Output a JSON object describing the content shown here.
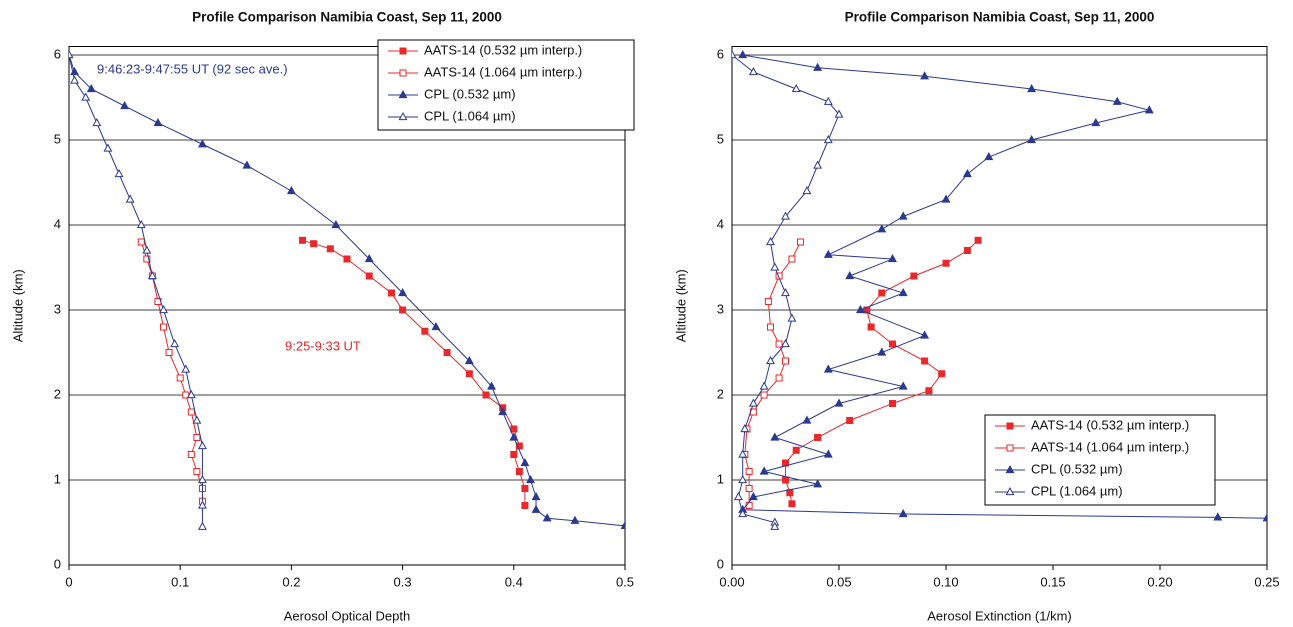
{
  "chart_data": [
    {
      "type": "line",
      "title": "Profile Comparison Namibia Coast, Sep 11, 2000",
      "x_label": "Aerosol Optical Depth",
      "y_label": "Altitude (km)",
      "xlim": [
        0,
        0.5
      ],
      "xticks": [
        0,
        0.1,
        0.2,
        0.3,
        0.4,
        0.5
      ],
      "ylim": [
        0,
        6.1
      ],
      "yticks": [
        0,
        1,
        2,
        3,
        4,
        5,
        6
      ],
      "grid": true,
      "legend": "upper right",
      "annotations": [
        {
          "text": "9:46:23-9:47:55 UT (92 sec ave.)",
          "color": "#2b3990"
        },
        {
          "text": "9:25-9:33 UT",
          "color": "#e8282a"
        }
      ],
      "series": [
        {
          "name": "AATS-14 (0.532 µm interp.)",
          "color": "#e8282a",
          "marker": "square",
          "filled": true,
          "x": [
            0.21,
            0.22,
            0.235,
            0.25,
            0.27,
            0.29,
            0.3,
            0.32,
            0.34,
            0.36,
            0.375,
            0.39,
            0.4,
            0.405,
            0.4,
            0.405,
            0.41,
            0.41
          ],
          "y": [
            3.82,
            3.78,
            3.72,
            3.6,
            3.4,
            3.2,
            3.0,
            2.75,
            2.5,
            2.25,
            2.0,
            1.85,
            1.6,
            1.4,
            1.3,
            1.1,
            0.9,
            0.7
          ]
        },
        {
          "name": "AATS-14 (1.064 µm interp.)",
          "color": "#e8282a",
          "marker": "square",
          "filled": false,
          "x": [
            0.065,
            0.07,
            0.075,
            0.08,
            0.085,
            0.09,
            0.1,
            0.105,
            0.11,
            0.115,
            0.11,
            0.115,
            0.12,
            0.12
          ],
          "y": [
            3.8,
            3.6,
            3.4,
            3.1,
            2.8,
            2.5,
            2.2,
            2.0,
            1.8,
            1.5,
            1.3,
            1.1,
            0.9,
            0.75
          ]
        },
        {
          "name": "CPL (0.532 µm)",
          "color": "#2b3990",
          "marker": "triangle",
          "filled": true,
          "x": [
            0,
            0.005,
            0.02,
            0.05,
            0.08,
            0.12,
            0.16,
            0.2,
            0.24,
            0.27,
            0.3,
            0.33,
            0.36,
            0.38,
            0.39,
            0.4,
            0.41,
            0.415,
            0.42,
            0.42,
            0.43,
            0.455,
            0.5
          ],
          "y": [
            6.0,
            5.8,
            5.6,
            5.4,
            5.2,
            4.95,
            4.7,
            4.4,
            4.0,
            3.6,
            3.2,
            2.8,
            2.4,
            2.1,
            1.8,
            1.5,
            1.2,
            1.0,
            0.8,
            0.65,
            0.55,
            0.52,
            0.46
          ]
        },
        {
          "name": "CPL (1.064 µm)",
          "color": "#2b3990",
          "marker": "triangle",
          "filled": false,
          "x": [
            0,
            0.005,
            0.015,
            0.025,
            0.035,
            0.045,
            0.055,
            0.065,
            0.07,
            0.075,
            0.085,
            0.095,
            0.105,
            0.11,
            0.115,
            0.12,
            0.12,
            0.12,
            0.12
          ],
          "y": [
            6.0,
            5.7,
            5.5,
            5.2,
            4.9,
            4.6,
            4.3,
            4.0,
            3.7,
            3.4,
            3.0,
            2.6,
            2.3,
            2.0,
            1.7,
            1.4,
            1.0,
            0.7,
            0.45
          ]
        }
      ]
    },
    {
      "type": "line",
      "title": "Profile Comparison Namibia Coast, Sep 11, 2000",
      "x_label": "Aerosol Extinction (1/km)",
      "y_label": "Altitude (km)",
      "xlim": [
        0,
        0.25
      ],
      "xticks": [
        {
          "value": 0,
          "label": "0.00"
        },
        {
          "value": 0.05,
          "label": "0.05"
        },
        {
          "value": 0.1,
          "label": "0.10"
        },
        {
          "value": 0.15,
          "label": "0.15"
        },
        {
          "value": 0.2,
          "label": "0.20"
        },
        {
          "value": 0.25,
          "label": "0.25"
        }
      ],
      "ylim": [
        0,
        6.1
      ],
      "yticks": [
        0,
        1,
        2,
        3,
        4,
        5,
        6
      ],
      "grid": true,
      "legend": "lower right",
      "series": [
        {
          "name": "AATS-14 (0.532 µm interp.)",
          "color": "#e8282a",
          "marker": "square",
          "filled": true,
          "x": [
            0.115,
            0.11,
            0.1,
            0.085,
            0.07,
            0.063,
            0.065,
            0.075,
            0.09,
            0.098,
            0.092,
            0.075,
            0.055,
            0.04,
            0.03,
            0.025,
            0.025,
            0.027,
            0.028
          ],
          "y": [
            3.82,
            3.7,
            3.55,
            3.4,
            3.2,
            3.0,
            2.8,
            2.6,
            2.4,
            2.25,
            2.05,
            1.9,
            1.7,
            1.5,
            1.35,
            1.2,
            1.0,
            0.85,
            0.72
          ]
        },
        {
          "name": "AATS-14 (1.064 µm interp.)",
          "color": "#e8282a",
          "marker": "square",
          "filled": false,
          "x": [
            0.032,
            0.028,
            0.022,
            0.017,
            0.018,
            0.022,
            0.025,
            0.022,
            0.015,
            0.01,
            0.007,
            0.006,
            0.008,
            0.008,
            0.008
          ],
          "y": [
            3.8,
            3.6,
            3.4,
            3.1,
            2.8,
            2.6,
            2.4,
            2.2,
            2.0,
            1.8,
            1.6,
            1.3,
            1.1,
            0.9,
            0.7
          ]
        },
        {
          "name": "CPL (0.532 µm)",
          "color": "#2b3990",
          "marker": "triangle",
          "filled": true,
          "x": [
            0.005,
            0.04,
            0.09,
            0.14,
            0.18,
            0.195,
            0.17,
            0.14,
            0.12,
            0.11,
            0.1,
            0.08,
            0.07,
            0.045,
            0.075,
            0.055,
            0.08,
            0.06,
            0.09,
            0.07,
            0.045,
            0.08,
            0.05,
            0.035,
            0.02,
            0.045,
            0.015,
            0.04,
            0.01,
            0.005,
            0.08,
            0.227,
            0.25
          ],
          "y": [
            6.0,
            5.85,
            5.75,
            5.6,
            5.45,
            5.35,
            5.2,
            5.0,
            4.8,
            4.6,
            4.3,
            4.1,
            3.95,
            3.65,
            3.6,
            3.4,
            3.2,
            3.0,
            2.7,
            2.5,
            2.3,
            2.1,
            1.9,
            1.7,
            1.5,
            1.3,
            1.1,
            0.95,
            0.8,
            0.65,
            0.6,
            0.56,
            0.55
          ]
        },
        {
          "name": "CPL (1.064 µm)",
          "color": "#2b3990",
          "marker": "triangle",
          "filled": false,
          "x": [
            0,
            0.01,
            0.03,
            0.045,
            0.05,
            0.045,
            0.04,
            0.035,
            0.025,
            0.018,
            0.02,
            0.025,
            0.028,
            0.025,
            0.018,
            0.015,
            0.01,
            0.006,
            0.005,
            0.005,
            0.003,
            0.005,
            0.02,
            0.02
          ],
          "y": [
            6.0,
            5.8,
            5.6,
            5.45,
            5.3,
            5.0,
            4.7,
            4.4,
            4.1,
            3.8,
            3.5,
            3.2,
            2.9,
            2.6,
            2.4,
            2.1,
            1.9,
            1.6,
            1.3,
            1.0,
            0.8,
            0.6,
            0.5,
            0.45
          ]
        }
      ]
    }
  ]
}
